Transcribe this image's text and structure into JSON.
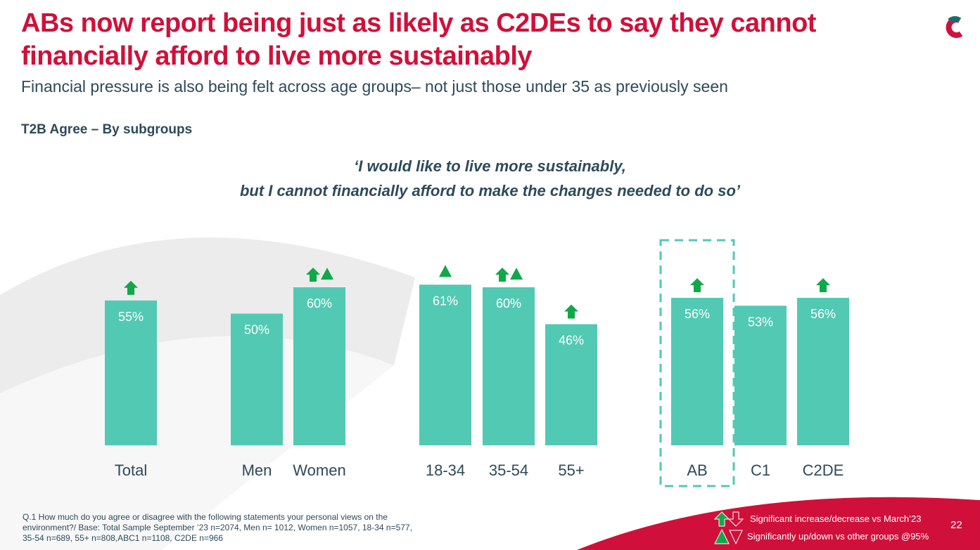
{
  "title": "ABs now report being just as likely as C2DEs to say they cannot financially afford to live more sustainably",
  "subtitle": "Financial pressure is also being felt across age groups– not just those under 35 as previously seen",
  "section_label": "T2B Agree – By subgroups",
  "quote_line1": "‘I would like to live more sustainably,",
  "quote_line2": "but I cannot financially afford to make the changes needed to do so’",
  "footnote": "Q.1 How much do you agree or disagree with the following statements your personal views on the environment?/ Base: Total Sample September ’23 n=2074, Men n= 1012, Women n=1057, 18-34 n=577, 35-54 n=689, 55+ n=808,ABC1 n=1108, C2DE n=966",
  "legend": {
    "arrow": "Significant increase/decrease vs March’23",
    "triangle": "Significantly up/down vs other groups @95%"
  },
  "page_number": "22",
  "colors": {
    "bar": "#52c9b3",
    "title": "#d0103a",
    "up": "#10a84a",
    "text": "#2d4a5a"
  },
  "chart_data": {
    "type": "bar",
    "categories": [
      "Total",
      "Men",
      "Women",
      "18-34",
      "35-54",
      "55+",
      "AB",
      "C1",
      "C2DE"
    ],
    "values": [
      55,
      50,
      60,
      61,
      60,
      46,
      56,
      53,
      56
    ],
    "labels": [
      "55%",
      "50%",
      "60%",
      "61%",
      "60%",
      "46%",
      "56%",
      "53%",
      "56%"
    ],
    "sig_vs_march23": [
      true,
      false,
      true,
      false,
      true,
      true,
      true,
      false,
      true
    ],
    "sig_vs_groups": [
      false,
      false,
      true,
      true,
      true,
      false,
      false,
      false,
      false
    ],
    "highlighted": "AB",
    "ylim": [
      0,
      100
    ]
  }
}
